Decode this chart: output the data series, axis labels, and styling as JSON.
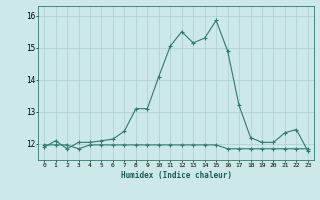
{
  "x": [
    0,
    1,
    2,
    3,
    4,
    5,
    6,
    7,
    8,
    9,
    10,
    11,
    12,
    13,
    14,
    15,
    16,
    17,
    18,
    19,
    20,
    21,
    22,
    23
  ],
  "y_curve": [
    11.9,
    12.1,
    11.85,
    12.05,
    12.05,
    12.1,
    12.15,
    12.4,
    13.1,
    13.1,
    14.1,
    15.05,
    15.5,
    15.15,
    15.3,
    15.85,
    14.9,
    13.2,
    12.2,
    12.05,
    12.05,
    12.35,
    12.45,
    11.78
  ],
  "y_flat": [
    11.97,
    11.97,
    11.97,
    11.85,
    11.97,
    11.97,
    11.97,
    11.97,
    11.97,
    11.97,
    11.97,
    11.97,
    11.97,
    11.97,
    11.97,
    11.97,
    11.85,
    11.85,
    11.85,
    11.85,
    11.85,
    11.85,
    11.85,
    11.85
  ],
  "xlabel": "Humidex (Indice chaleur)",
  "line_color": "#2d7a6e",
  "bg_color": "#cce8e8",
  "grid_color": "#aacfcf",
  "ylim_min": 11.5,
  "ylim_max": 16.3,
  "xlim_min": -0.5,
  "xlim_max": 23.5,
  "yticks": [
    12,
    13,
    14,
    15,
    16
  ],
  "ytick_labels": [
    "12",
    "13",
    "14",
    "15",
    "16"
  ]
}
